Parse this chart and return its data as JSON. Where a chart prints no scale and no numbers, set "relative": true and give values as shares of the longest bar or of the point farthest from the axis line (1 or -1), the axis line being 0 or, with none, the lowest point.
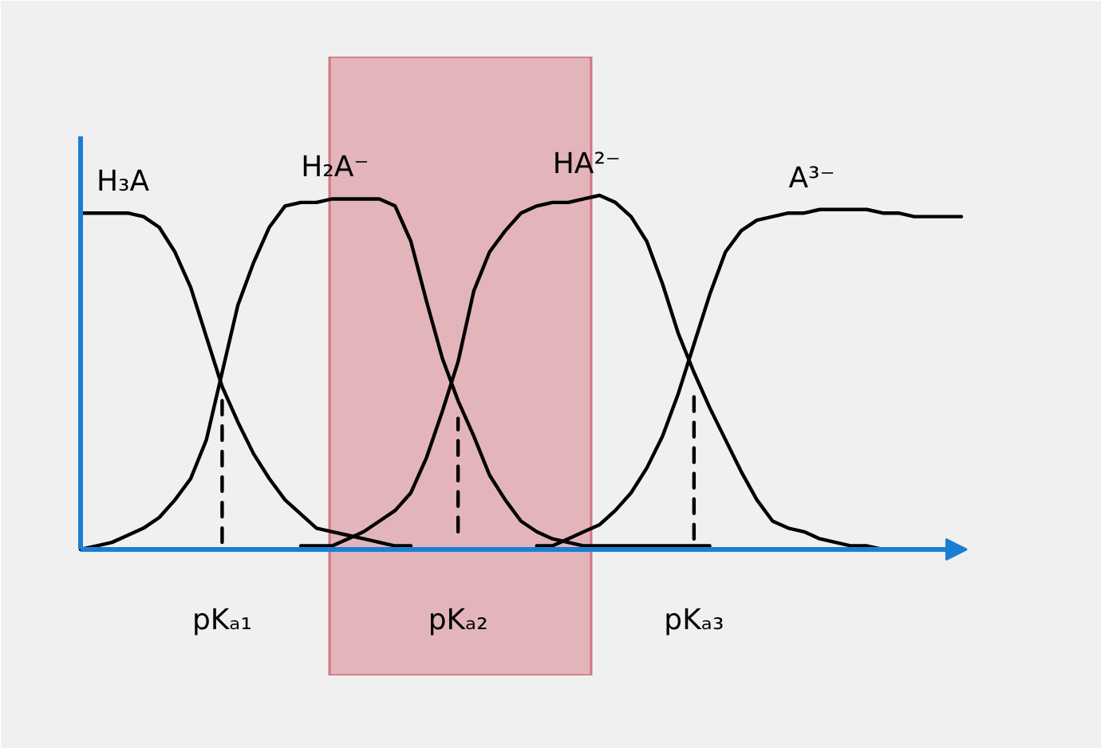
{
  "chart_data": {
    "type": "line",
    "relative": true,
    "tick_labels": "x",
    "line_style": "solid",
    "categories": [
      null,
      null,
      null,
      null,
      null,
      null,
      null,
      null,
      null,
      "pKₐ₁",
      null,
      null,
      null,
      null,
      null,
      null,
      null,
      null,
      null,
      null,
      null,
      null,
      null,
      null,
      "pKₐ₂",
      null,
      null,
      null,
      null,
      null,
      null,
      null,
      null,
      null,
      null,
      null,
      null,
      null,
      null,
      "pKₐ₃",
      null,
      null,
      null,
      null,
      null,
      null,
      null,
      null,
      null,
      null,
      null,
      null,
      null,
      null,
      null,
      null,
      null
    ],
    "series": [
      {
        "name": "H₃A",
        "color": "#000000",
        "values": [
          0.95,
          0.95,
          0.95,
          0.95,
          0.94,
          0.91,
          0.84,
          0.74,
          0.6,
          0.46,
          0.36,
          0.27,
          0.2,
          0.14,
          0.1,
          0.06,
          0.05,
          0.04,
          0.03,
          0.02,
          0.01,
          0.01,
          null,
          null,
          null,
          null,
          null,
          null,
          null,
          null,
          null,
          null,
          null,
          null,
          null,
          null,
          null,
          null,
          null,
          null,
          null,
          null,
          null,
          null,
          null,
          null,
          null,
          null,
          null,
          null,
          null,
          null,
          null,
          null,
          null,
          null,
          null
        ]
      },
      {
        "name": "H₂A⁻",
        "color": "#000000",
        "values": [
          0,
          0.01,
          0.02,
          0.04,
          0.06,
          0.09,
          0.14,
          0.2,
          0.31,
          0.5,
          0.69,
          0.81,
          0.91,
          0.97,
          0.98,
          0.98,
          0.99,
          0.99,
          0.99,
          0.99,
          0.97,
          0.87,
          0.7,
          0.54,
          0.42,
          0.32,
          0.21,
          0.14,
          0.08,
          0.05,
          0.03,
          0.02,
          0.01,
          0.01,
          0.01,
          0.01,
          0.01,
          0.01,
          0.01,
          0.01,
          0.01,
          null,
          null,
          null,
          null,
          null,
          null,
          null,
          null,
          null,
          null,
          null,
          null,
          null,
          null,
          null,
          null
        ]
      },
      {
        "name": "HA²⁻",
        "color": "#000000",
        "values": [
          null,
          null,
          null,
          null,
          null,
          null,
          null,
          null,
          null,
          null,
          null,
          null,
          null,
          null,
          0.01,
          0.01,
          0.01,
          0.03,
          0.05,
          0.08,
          0.11,
          0.16,
          0.26,
          0.39,
          0.53,
          0.73,
          0.84,
          0.9,
          0.95,
          0.97,
          0.98,
          0.98,
          0.99,
          1,
          0.98,
          0.94,
          0.87,
          0.75,
          0.61,
          0.5,
          0.4,
          0.31,
          0.22,
          0.14,
          0.08,
          0.06,
          0.05,
          0.03,
          0.02,
          0.01,
          0.01,
          0,
          null,
          null,
          null,
          null,
          null
        ]
      },
      {
        "name": "A³⁻",
        "color": "#000000",
        "values": [
          null,
          null,
          null,
          null,
          null,
          null,
          null,
          null,
          null,
          null,
          null,
          null,
          null,
          null,
          null,
          null,
          null,
          null,
          null,
          null,
          null,
          null,
          null,
          null,
          null,
          null,
          null,
          null,
          null,
          0.01,
          0.01,
          0.03,
          0.05,
          0.07,
          0.11,
          0.16,
          0.23,
          0.32,
          0.44,
          0.58,
          0.72,
          0.84,
          0.9,
          0.93,
          0.94,
          0.95,
          0.95,
          0.96,
          0.96,
          0.96,
          0.96,
          0.95,
          0.95,
          0.94,
          0.94,
          0.94,
          0.94
        ]
      },
      {
        "color": "#000000",
        "line_style": "dashed",
        "x": [
          "pKₐ₁",
          "pKₐ₁"
        ],
        "values": [
          0.02,
          0.42
        ]
      },
      {
        "color": "#000000",
        "line_style": "dashed",
        "x": [
          "pKₐ₂",
          "pKₐ₂"
        ],
        "values": [
          0.05,
          0.37
        ]
      },
      {
        "color": "#000000",
        "line_style": "dashed",
        "x": [
          "pKₐ₃",
          "pKₐ₃"
        ],
        "values": [
          0.03,
          0.44
        ]
      }
    ]
  }
}
